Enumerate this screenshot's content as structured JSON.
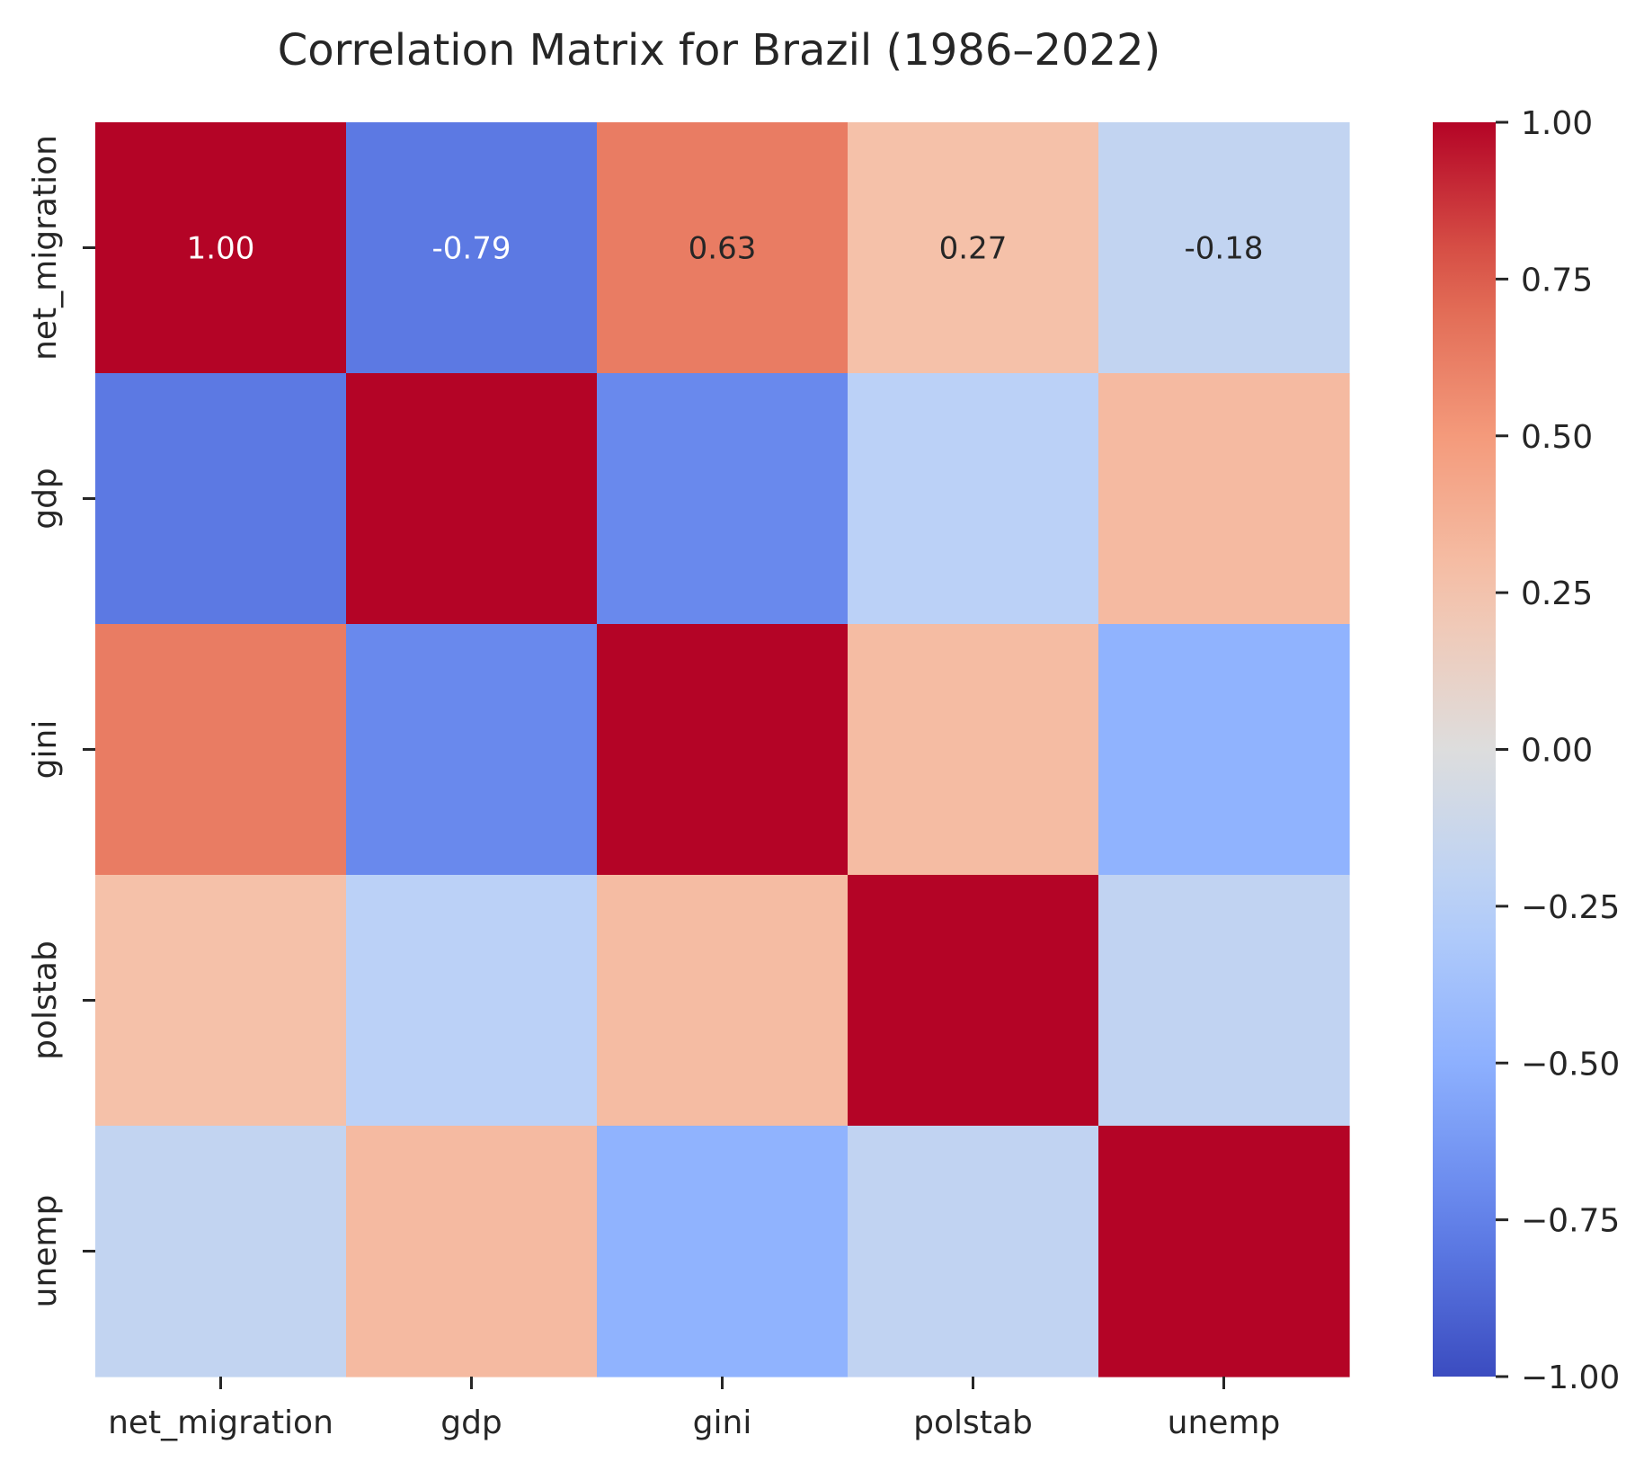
{
  "chart_data": {
    "type": "heatmap",
    "title": "Correlation Matrix for Brazil (1986–2022)",
    "xlabel": "",
    "ylabel": "",
    "x_categories": [
      "net_migration",
      "gdp",
      "gini",
      "polstab",
      "unemp"
    ],
    "y_categories": [
      "net_migration",
      "gdp",
      "gini",
      "polstab",
      "unemp"
    ],
    "values": [
      [
        1.0,
        -0.79,
        0.63,
        0.27,
        -0.18
      ],
      [
        -0.79,
        1.0,
        -0.71,
        -0.23,
        0.31
      ],
      [
        0.63,
        -0.71,
        1.0,
        0.3,
        -0.48
      ],
      [
        0.27,
        -0.23,
        0.3,
        1.0,
        -0.19
      ],
      [
        -0.18,
        0.31,
        -0.48,
        -0.19,
        1.0
      ]
    ],
    "annotated_row": 0,
    "annotations": [
      "1.00",
      "-0.79",
      "0.63",
      "0.27",
      "-0.18"
    ],
    "colormap": "coolwarm",
    "vmin": -1.0,
    "vmax": 1.0,
    "colorbar_ticks": [
      1.0,
      0.75,
      0.5,
      0.25,
      0.0,
      -0.25,
      -0.5,
      -0.75,
      -1.0
    ],
    "colorbar_tick_labels": [
      "1.00",
      "0.75",
      "0.50",
      "0.25",
      "0.00",
      "−0.25",
      "−0.50",
      "−0.75",
      "−1.00"
    ],
    "grid": false,
    "legend": "colorbar-right"
  }
}
